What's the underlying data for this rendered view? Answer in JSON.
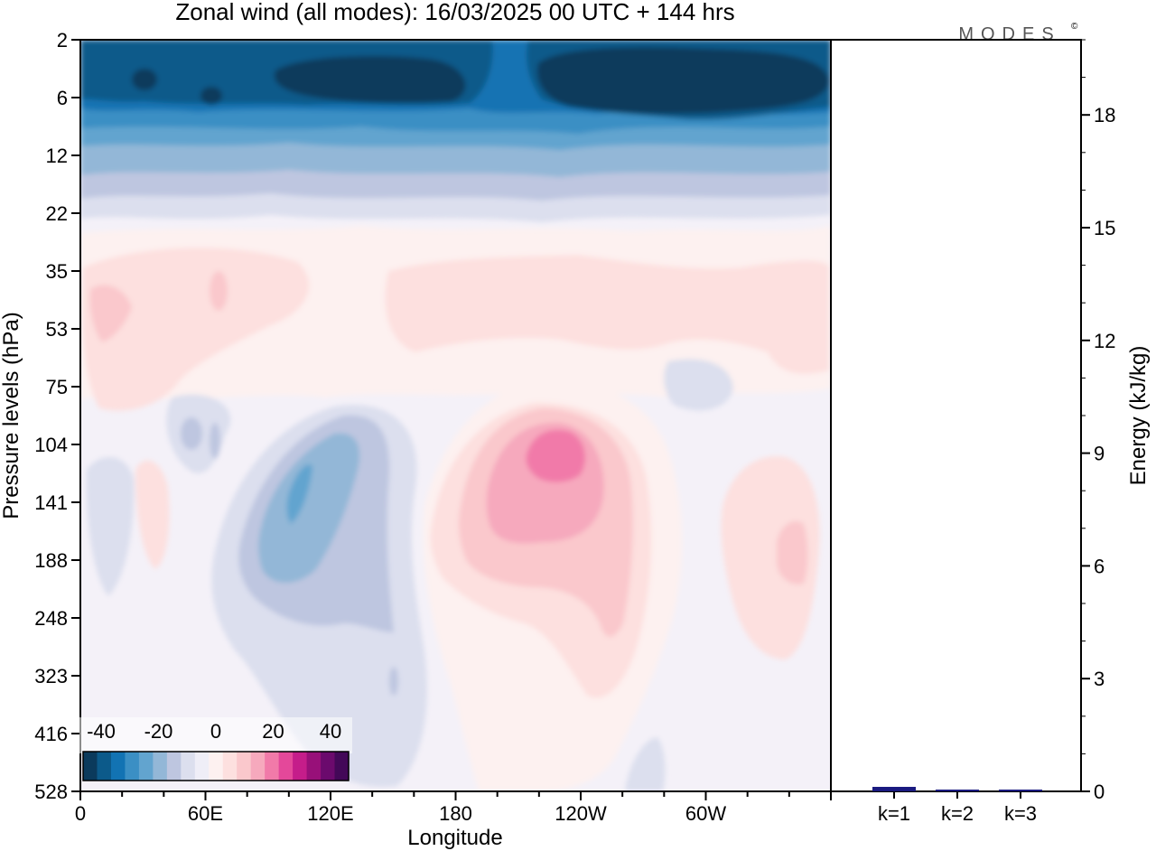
{
  "chart_data": [
    {
      "type": "heatmap",
      "title": "Zonal wind (all modes):  16/03/2025  00 UTC  + 144 hrs",
      "xlabel": "Longitude",
      "ylabel": "Pressure levels (hPa)",
      "x_ticks": [
        "0",
        "60E",
        "120E",
        "180",
        "120W",
        "60W"
      ],
      "y_ticks": [
        "2",
        "6",
        "12",
        "22",
        "35",
        "53",
        "75",
        "104",
        "141",
        "188",
        "248",
        "323",
        "416",
        "528"
      ],
      "colorbar": {
        "ticks": [
          "-40",
          "-20",
          "0",
          "20",
          "40"
        ],
        "colors": [
          "#0b3a5c",
          "#0c5a8a",
          "#1273b3",
          "#3b8fc4",
          "#62a4cf",
          "#93b7d7",
          "#bec6e0",
          "#dcdfee",
          "#efeef7",
          "#fdf1f0",
          "#fde0df",
          "#fac8cc",
          "#f6a9bd",
          "#f17aa9",
          "#e4489a",
          "#c51d8a",
          "#981079",
          "#6b0a6d",
          "#430858"
        ]
      },
      "logo": "MODES",
      "logo_mark": "©"
    },
    {
      "type": "bar",
      "ylabel": "Energy (kJ/kg)",
      "categories": [
        "k=1",
        "k=2",
        "k=3"
      ],
      "values": [
        0.12,
        0.04,
        0.03
      ],
      "ylim": [
        0,
        20
      ],
      "y_ticks": [
        "0",
        "3",
        "6",
        "9",
        "12",
        "15",
        "18"
      ],
      "bar_color": "#1a1a80"
    }
  ]
}
